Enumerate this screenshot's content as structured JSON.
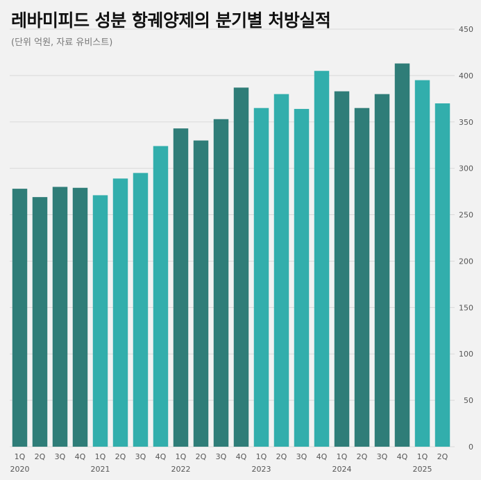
{
  "title": "레바미피드 성분 항궤양제의 분기별 처방실적",
  "subtitle": "(단위 억원, 자료 유비스트)",
  "colors": {
    "dark": "#2f7d78",
    "light": "#32aeac",
    "grid": "#d9d9d9",
    "background": "#f2f2f2"
  },
  "chart_data": {
    "type": "bar",
    "categories": [
      "1Q",
      "2Q",
      "3Q",
      "4Q",
      "1Q",
      "2Q",
      "3Q",
      "4Q",
      "1Q",
      "2Q",
      "3Q",
      "4Q",
      "1Q",
      "2Q",
      "3Q",
      "4Q",
      "1Q",
      "2Q",
      "3Q",
      "4Q",
      "1Q",
      "2Q"
    ],
    "years": [
      {
        "label": "2020",
        "start": 0
      },
      {
        "label": "2021",
        "start": 4
      },
      {
        "label": "2022",
        "start": 8
      },
      {
        "label": "2023",
        "start": 12
      },
      {
        "label": "2024",
        "start": 16
      },
      {
        "label": "2025",
        "start": 20
      }
    ],
    "values": [
      278,
      269,
      280,
      279,
      271,
      289,
      295,
      324,
      343,
      330,
      353,
      387,
      365,
      380,
      364,
      405,
      383,
      365,
      380,
      413,
      395,
      370
    ],
    "bar_shade": [
      "dark",
      "dark",
      "dark",
      "dark",
      "light",
      "light",
      "light",
      "light",
      "dark",
      "dark",
      "dark",
      "dark",
      "light",
      "light",
      "light",
      "light",
      "dark",
      "dark",
      "dark",
      "dark",
      "light",
      "light"
    ],
    "ylim": [
      0,
      450
    ],
    "yticks": [
      0,
      50,
      100,
      150,
      200,
      250,
      300,
      350,
      400,
      450
    ],
    "yaxis_side": "right",
    "grid": true
  }
}
